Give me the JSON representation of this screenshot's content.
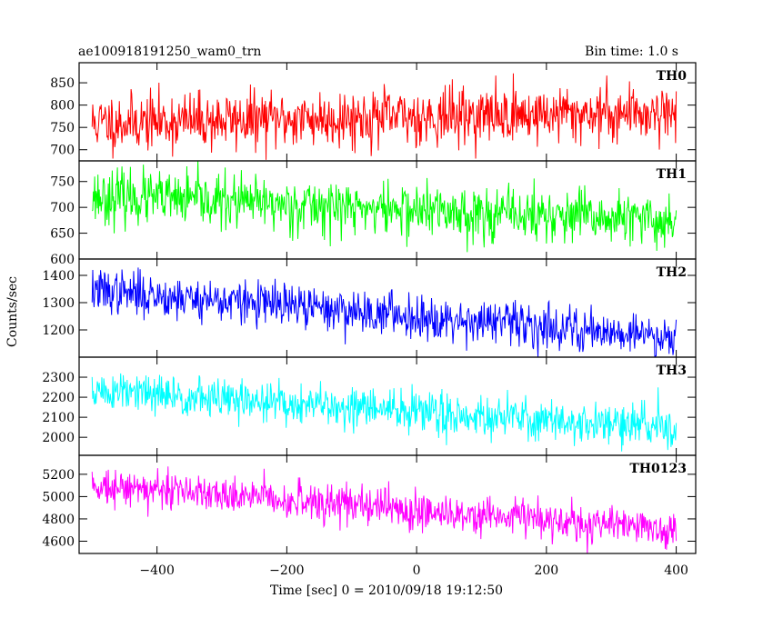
{
  "chart_data": {
    "type": "line",
    "title": "ae100918191250_wam0_trn",
    "subtitle": "Bin time: 1.0 s",
    "xlabel": "Time [sec] 0 = 2010/09/18 19:12:50",
    "ylabel": "Counts/sec",
    "xlim": [
      -520,
      430
    ],
    "xticks": [
      -400,
      -200,
      0,
      200,
      400
    ],
    "x_start": -500,
    "x_end": 400,
    "x_step": 1,
    "grid": false,
    "panels": [
      {
        "name": "TH0",
        "color": "#ff0000",
        "ylim": [
          675,
          895
        ],
        "yticks": [
          700,
          750,
          800,
          850
        ],
        "trend": [
          760,
          785
        ],
        "noise_sd": 32,
        "seed": 11
      },
      {
        "name": "TH1",
        "color": "#00ff00",
        "ylim": [
          600,
          790
        ],
        "yticks": [
          600,
          650,
          700,
          750
        ],
        "trend": [
          722,
          672
        ],
        "noise_sd": 26,
        "seed": 23
      },
      {
        "name": "TH2",
        "color": "#0000ff",
        "ylim": [
          1100,
          1460
        ],
        "yticks": [
          1200,
          1300,
          1400
        ],
        "trend": [
          1345,
          1175
        ],
        "noise_sd": 40,
        "seed": 37
      },
      {
        "name": "TH3",
        "color": "#00ffff",
        "ylim": [
          1910,
          2400
        ],
        "yticks": [
          2000,
          2100,
          2200,
          2300
        ],
        "trend": [
          2230,
          2045
        ],
        "noise_sd": 52,
        "seed": 51
      },
      {
        "name": "TH0123",
        "color": "#ff00ff",
        "ylim": [
          4490,
          5370
        ],
        "yticks": [
          4600,
          4800,
          5000,
          5200
        ],
        "trend": [
          5110,
          4700
        ],
        "noise_sd": 85,
        "seed": 73
      }
    ]
  }
}
